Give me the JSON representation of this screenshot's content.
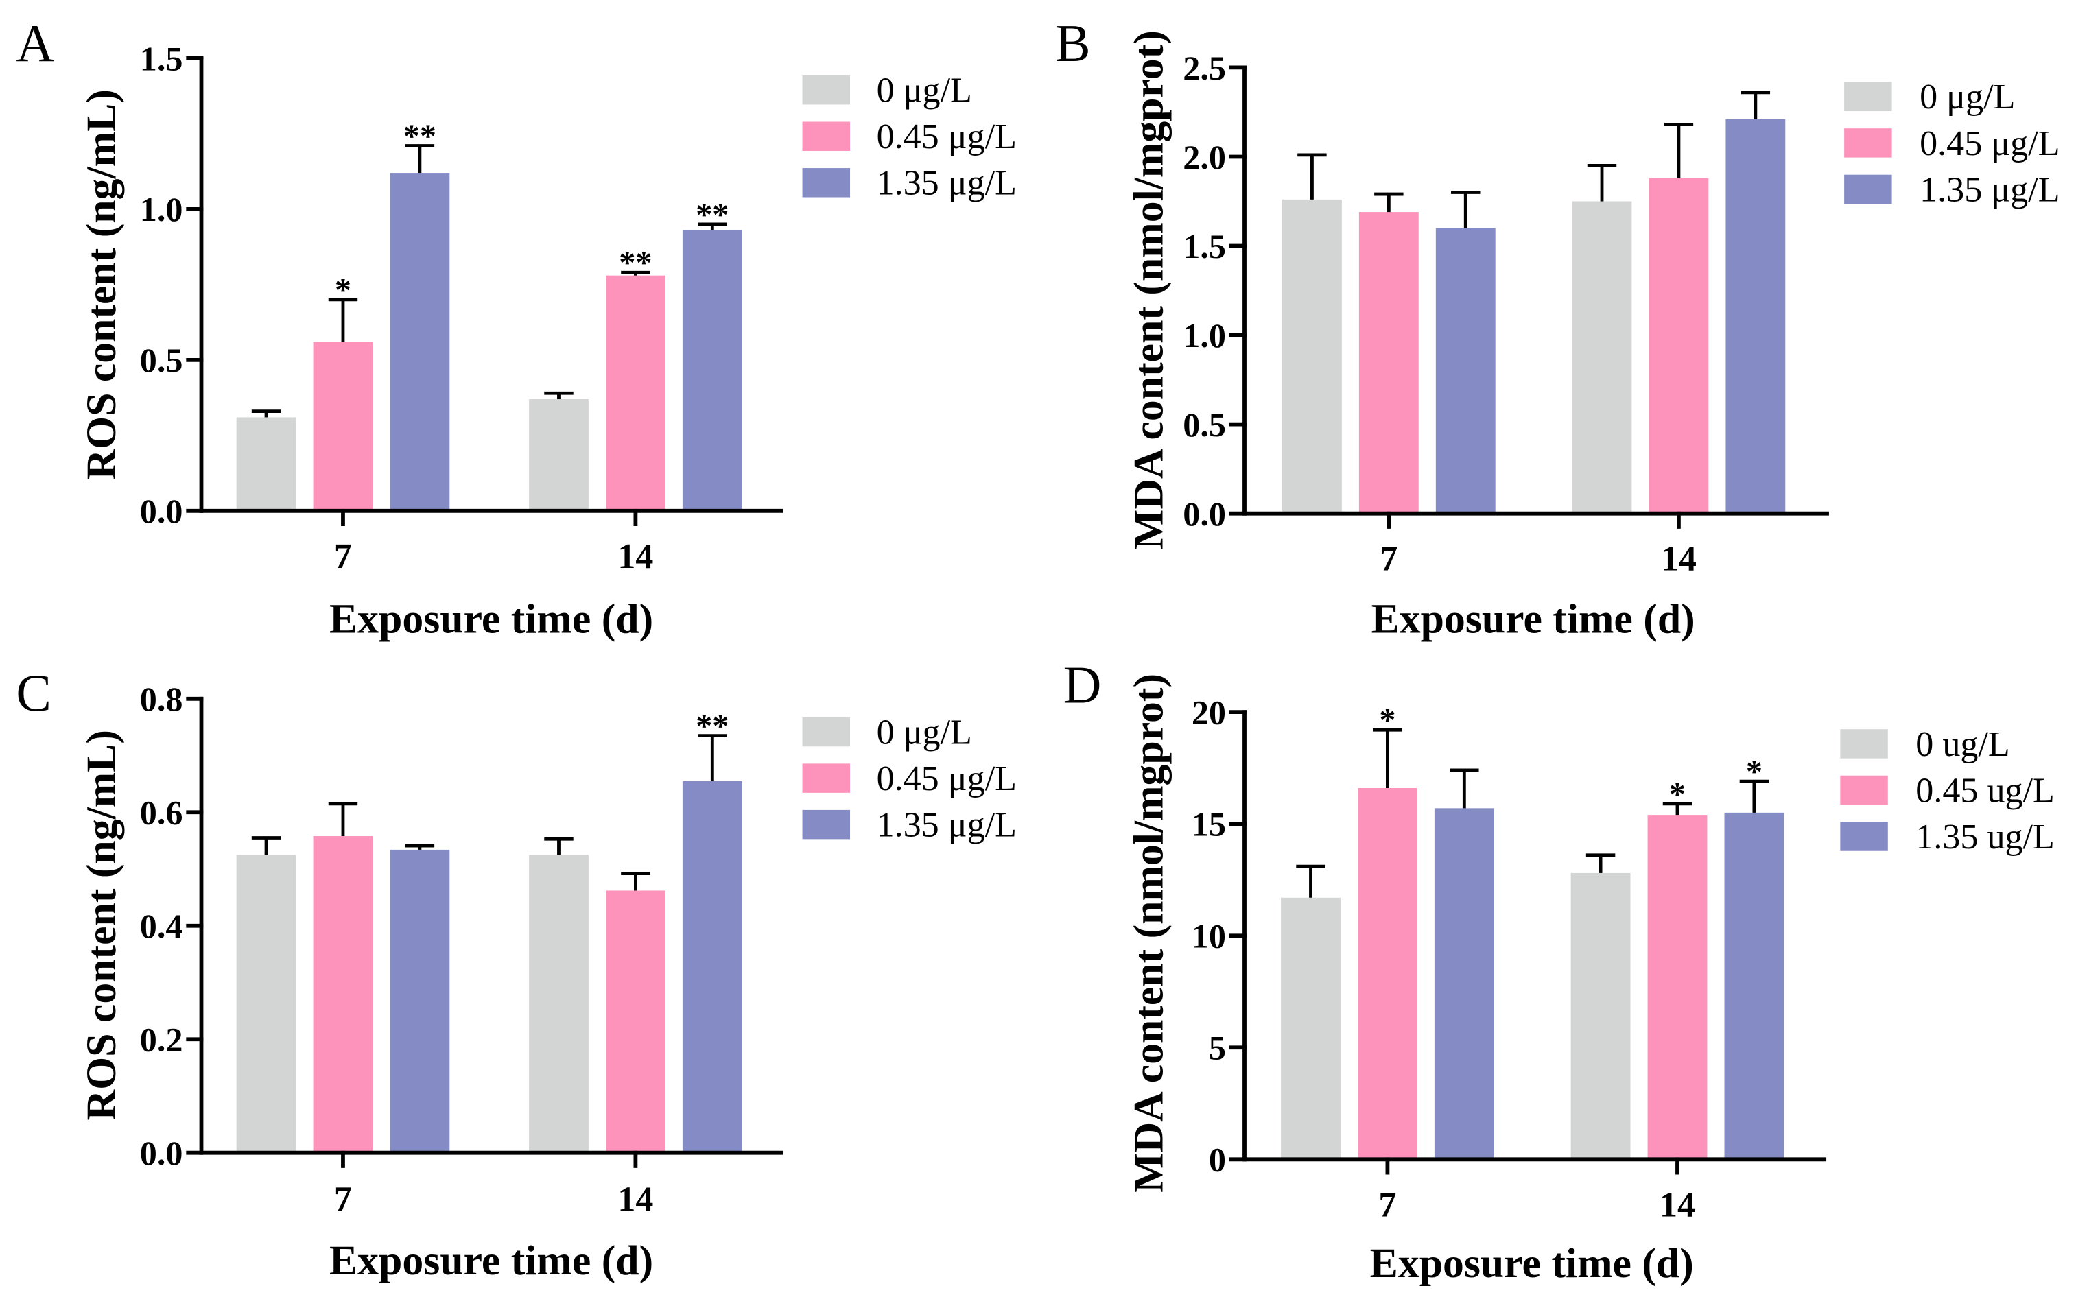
{
  "chart_data": [
    {
      "panel": "A",
      "type": "bar",
      "xlabel": "Exposure time (d)",
      "ylabel": "ROS content (ng/mL)",
      "categories": [
        "7",
        "14"
      ],
      "ylim": [
        0,
        1.5
      ],
      "yticks": [
        0,
        0.5,
        1.0,
        1.5
      ],
      "ytick_labels": [
        "0.0",
        "0.5",
        "1.0",
        "1.5"
      ],
      "grid": false,
      "legend_position": "right",
      "series": [
        {
          "name": "0 μg/L",
          "color": "#d3d5d4",
          "values": [
            0.31,
            0.37
          ],
          "error": [
            0.02,
            0.02
          ],
          "significance": [
            "",
            ""
          ]
        },
        {
          "name": "0.45 μg/L",
          "color": "#fd93ba",
          "values": [
            0.56,
            0.78
          ],
          "error": [
            0.14,
            0.01
          ],
          "significance": [
            "*",
            "**"
          ]
        },
        {
          "name": "1.35 μg/L",
          "color": "#858bc5",
          "values": [
            1.12,
            0.93
          ],
          "error": [
            0.09,
            0.02
          ],
          "significance": [
            "**",
            "**"
          ]
        }
      ]
    },
    {
      "panel": "B",
      "type": "bar",
      "xlabel": "Exposure time (d)",
      "ylabel": "MDA content (nmol/mgprot)",
      "categories": [
        "7",
        "14"
      ],
      "ylim": [
        0,
        2.5
      ],
      "yticks": [
        0,
        0.5,
        1.0,
        1.5,
        2.0,
        2.5
      ],
      "ytick_labels": [
        "0.0",
        "0.5",
        "1.0",
        "1.5",
        "2.0",
        "2.5"
      ],
      "grid": false,
      "legend_position": "right",
      "series": [
        {
          "name": "0 μg/L",
          "color": "#d3d5d4",
          "values": [
            1.76,
            1.75
          ],
          "error": [
            0.25,
            0.2
          ],
          "significance": [
            "",
            ""
          ]
        },
        {
          "name": "0.45 μg/L",
          "color": "#fd93ba",
          "values": [
            1.69,
            1.88
          ],
          "error": [
            0.1,
            0.3
          ],
          "significance": [
            "",
            ""
          ]
        },
        {
          "name": "1.35 μg/L",
          "color": "#858bc5",
          "values": [
            1.6,
            2.21
          ],
          "error": [
            0.2,
            0.15
          ],
          "significance": [
            "",
            ""
          ]
        }
      ]
    },
    {
      "panel": "C",
      "type": "bar",
      "xlabel": "Exposure time (d)",
      "ylabel": "ROS content (ng/mL)",
      "categories": [
        "7",
        "14"
      ],
      "ylim": [
        0,
        0.8
      ],
      "yticks": [
        0,
        0.2,
        0.4,
        0.6,
        0.8
      ],
      "ytick_labels": [
        "0.0",
        "0.2",
        "0.4",
        "0.6",
        "0.8"
      ],
      "grid": false,
      "legend_position": "right",
      "series": [
        {
          "name": "0 μg/L",
          "color": "#d3d5d4",
          "values": [
            0.525,
            0.525
          ],
          "error": [
            0.03,
            0.028
          ],
          "significance": [
            "",
            ""
          ]
        },
        {
          "name": "0.45 μg/L",
          "color": "#fd93ba",
          "values": [
            0.558,
            0.462
          ],
          "error": [
            0.057,
            0.03
          ],
          "significance": [
            "",
            ""
          ]
        },
        {
          "name": "1.35 μg/L",
          "color": "#858bc5",
          "values": [
            0.534,
            0.655
          ],
          "error": [
            0.007,
            0.08
          ],
          "significance": [
            "",
            "**"
          ]
        }
      ]
    },
    {
      "panel": "D",
      "type": "bar",
      "xlabel": "Exposure time (d)",
      "ylabel": "MDA content (nmol/mgprot)",
      "categories": [
        "7",
        "14"
      ],
      "ylim": [
        0,
        20
      ],
      "yticks": [
        0,
        5,
        10,
        15,
        20
      ],
      "ytick_labels": [
        "0",
        "5",
        "10",
        "15",
        "20"
      ],
      "grid": false,
      "legend_position": "right",
      "series": [
        {
          "name": "0 ug/L",
          "color": "#d3d5d4",
          "values": [
            11.7,
            12.8
          ],
          "error": [
            1.4,
            0.8
          ],
          "significance": [
            "",
            ""
          ]
        },
        {
          "name": "0.45 ug/L",
          "color": "#fd93ba",
          "values": [
            16.6,
            15.4
          ],
          "error": [
            2.6,
            0.5
          ],
          "significance": [
            "*",
            "*"
          ]
        },
        {
          "name": "1.35 ug/L",
          "color": "#858bc5",
          "values": [
            15.7,
            15.5
          ],
          "error": [
            1.7,
            1.4
          ],
          "significance": [
            "",
            "*"
          ]
        }
      ]
    }
  ]
}
